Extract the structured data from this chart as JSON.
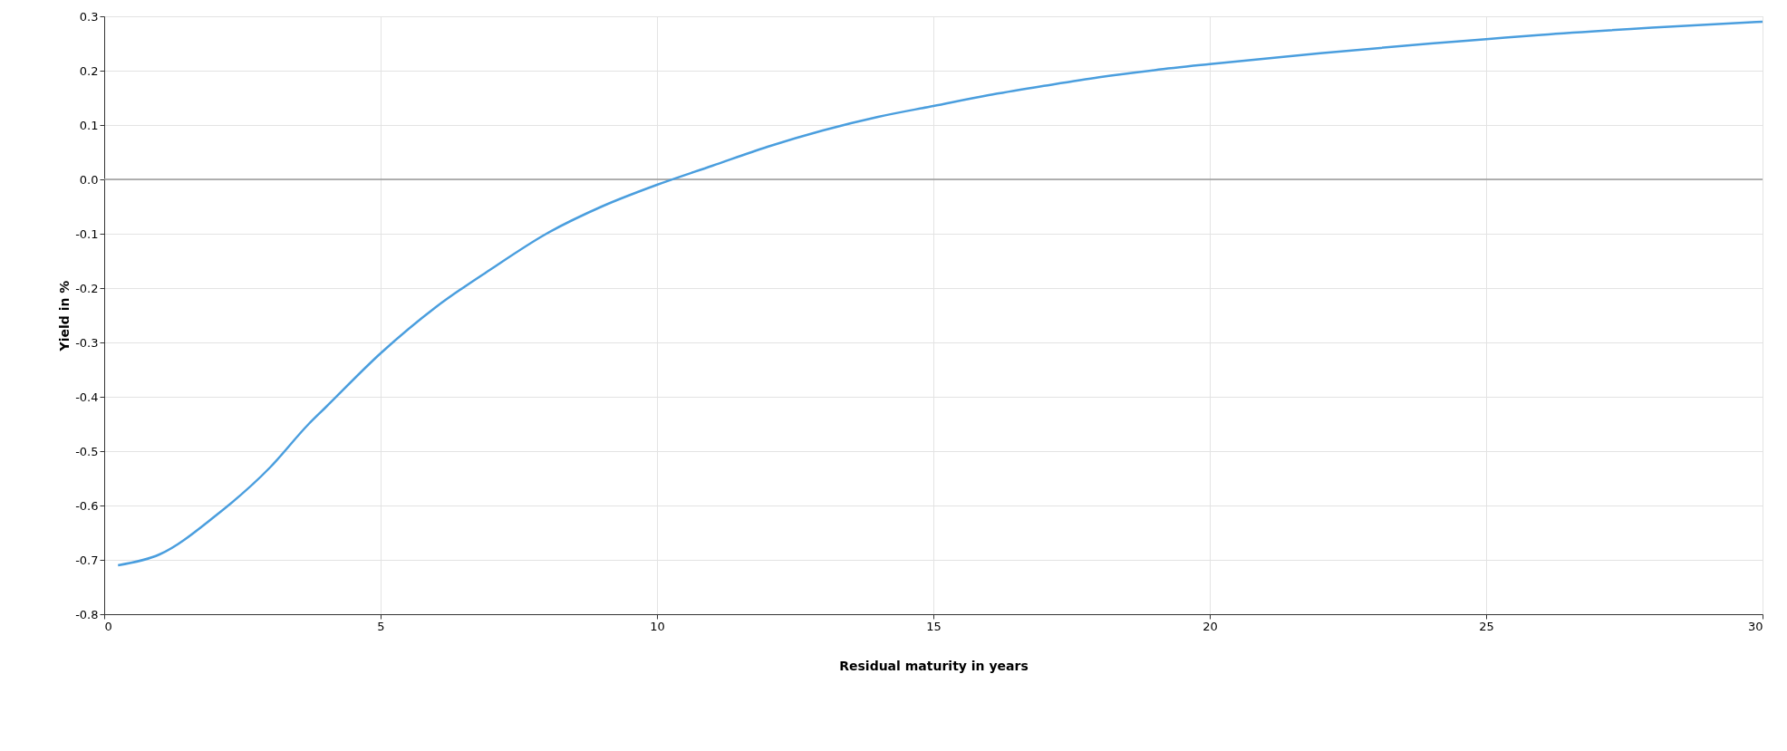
{
  "chart_data": {
    "type": "line",
    "xlabel": "Residual maturity in years",
    "ylabel": "Yield in %",
    "x": [
      0.25,
      1,
      2,
      3,
      3.7,
      4,
      5,
      6,
      7,
      8,
      9,
      10,
      11,
      12,
      13,
      14,
      15,
      16,
      17,
      18,
      19,
      20,
      22,
      24,
      25,
      26,
      28,
      30
    ],
    "series": [
      {
        "color": "#4a9ede",
        "values": [
          -0.71,
          -0.69,
          -0.62,
          -0.53,
          -0.45,
          -0.42,
          -0.32,
          -0.235,
          -0.165,
          -0.1,
          -0.05,
          -0.01,
          0.025,
          0.06,
          0.09,
          0.115,
          0.135,
          0.155,
          0.172,
          0.188,
          0.201,
          0.212,
          0.232,
          0.25,
          0.258,
          0.266,
          0.279,
          0.29
        ]
      }
    ],
    "xlim": [
      0,
      30
    ],
    "xticks": [
      0,
      5,
      10,
      15,
      20,
      25,
      30
    ],
    "ylim": [
      -0.8,
      0.3
    ],
    "yticks": [
      {
        "value": -0.8,
        "label": "-0.8"
      },
      {
        "value": -0.7,
        "label": "-0.7"
      },
      {
        "value": -0.6,
        "label": "-0.6"
      },
      {
        "value": -0.5,
        "label": "-0.5"
      },
      {
        "value": -0.4,
        "label": "-0.4"
      },
      {
        "value": -0.3,
        "label": "-0.3"
      },
      {
        "value": -0.2,
        "label": "-0.2"
      },
      {
        "value": -0.1,
        "label": "-0.1"
      },
      {
        "value": 0,
        "label": "0.0"
      },
      {
        "value": 0.1,
        "label": "0.1"
      },
      {
        "value": 0.2,
        "label": "0.2"
      },
      {
        "value": 0.3,
        "label": "0.3"
      }
    ],
    "ref_lines": [
      {
        "axis": "y",
        "value": 0,
        "color": "#999999"
      }
    ],
    "grid": true,
    "marker": "none",
    "line_style": "solid"
  }
}
